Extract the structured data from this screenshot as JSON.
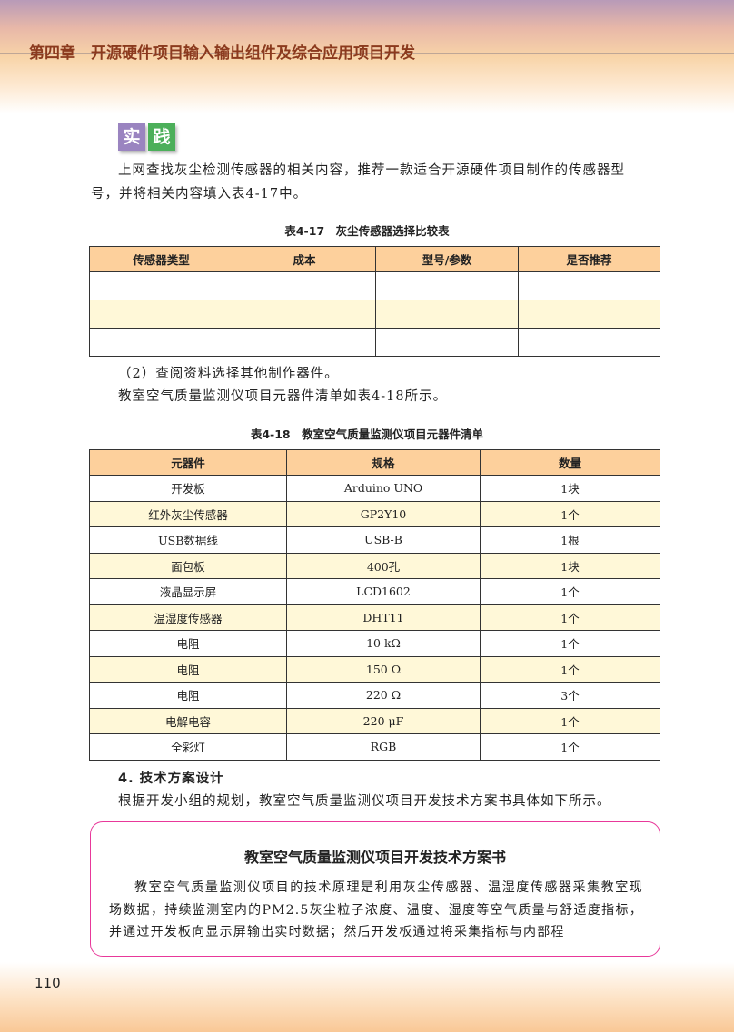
{
  "header": {
    "chapter_title": "第四章　开源硬件项目输入输出组件及综合应用项目开发"
  },
  "practice_badge": {
    "chars": [
      "实",
      "践"
    ],
    "colors": [
      "#9a84c0",
      "#4caf5a"
    ]
  },
  "practice_text": {
    "line1": "上网查找灰尘检测传感器的相关内容，推荐一款适合开源硬件项目制作的传感器型",
    "line2": "号，并将相关内容填入表4-17中。"
  },
  "table1": {
    "caption": "表4-17　灰尘传感器选择比较表",
    "headers": [
      "传感器类型",
      "成本",
      "型号/参数",
      "是否推荐"
    ],
    "rows": [
      [
        "",
        "",
        "",
        ""
      ],
      [
        "",
        "",
        "",
        ""
      ],
      [
        "",
        "",
        "",
        ""
      ]
    ]
  },
  "section2": {
    "line1": "（2）查阅资料选择其他制作器件。",
    "line2": "教室空气质量监测仪项目元器件清单如表4-18所示。"
  },
  "table2": {
    "caption": "表4-18　教室空气质量监测仪项目元器件清单",
    "headers": [
      "元器件",
      "规格",
      "数量"
    ],
    "rows": [
      [
        "开发板",
        "Arduino UNO",
        "1块"
      ],
      [
        "红外灰尘传感器",
        "GP2Y10",
        "1个"
      ],
      [
        "USB数据线",
        "USB-B",
        "1根"
      ],
      [
        "面包板",
        "400孔",
        "1块"
      ],
      [
        "液晶显示屏",
        "LCD1602",
        "1个"
      ],
      [
        "温湿度传感器",
        "DHT11",
        "1个"
      ],
      [
        "电阻",
        "10 kΩ",
        "1个"
      ],
      [
        "电阻",
        "150 Ω",
        "1个"
      ],
      [
        "电阻",
        "220 Ω",
        "3个"
      ],
      [
        "电解电容",
        "220 μF",
        "1个"
      ],
      [
        "全彩灯",
        "RGB",
        "1个"
      ]
    ]
  },
  "section4": {
    "heading": "4. 技术方案设计",
    "text": "根据开发小组的规划，教室空气质量监测仪项目开发技术方案书具体如下所示。"
  },
  "plan_box": {
    "title": "教室空气质量监测仪项目开发技术方案书",
    "body": "教室空气质量监测仪项目的技术原理是利用灰尘传感器、温湿度传感器采集教室现场数据，持续监测室内的PM2.5灰尘粒子浓度、温度、湿度等空气质量与舒适度指标，并通过开发板向显示屏输出实时数据；然后开发板通过将采集指标与内部程"
  },
  "page_number": "110"
}
